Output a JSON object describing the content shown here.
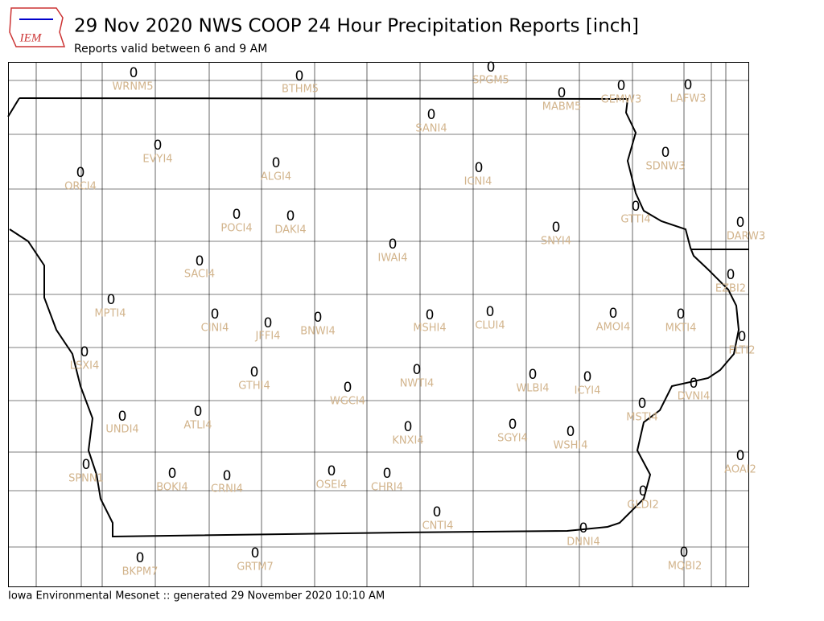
{
  "header": {
    "logo": "IEM",
    "title": "29 Nov 2020 NWS COOP 24 Hour Precipitation Reports [inch]",
    "subtitle": "Reports valid between 6 and 9 AM"
  },
  "stations": [
    {
      "id": "WRNM5",
      "value": 0
    },
    {
      "id": "BTHM5",
      "value": 0
    },
    {
      "id": "SPGM5",
      "value": 0
    },
    {
      "id": "MABM5",
      "value": 0
    },
    {
      "id": "GEMW3",
      "value": 0
    },
    {
      "id": "LAFW3",
      "value": 0
    },
    {
      "id": "SANI4",
      "value": 0
    },
    {
      "id": "EVYI4",
      "value": 0
    },
    {
      "id": "ALGI4",
      "value": 0
    },
    {
      "id": "ORCI4",
      "value": 0
    },
    {
      "id": "ICNI4",
      "value": 0
    },
    {
      "id": "SDNW3",
      "value": 0
    },
    {
      "id": "GTTI4",
      "value": 0
    },
    {
      "id": "DARW3",
      "value": 0
    },
    {
      "id": "POCI4",
      "value": 0
    },
    {
      "id": "DAKI4",
      "value": 0
    },
    {
      "id": "IWAI4",
      "value": 0
    },
    {
      "id": "SNYI4",
      "value": 0
    },
    {
      "id": "SACI4",
      "value": 0
    },
    {
      "id": "EZBI2",
      "value": 0
    },
    {
      "id": "MPTI4",
      "value": 0
    },
    {
      "id": "CINI4",
      "value": 0
    },
    {
      "id": "JFFI4",
      "value": 0
    },
    {
      "id": "BNWI4",
      "value": 0
    },
    {
      "id": "MSHI4",
      "value": 0
    },
    {
      "id": "CLUI4",
      "value": 0
    },
    {
      "id": "AMOI4",
      "value": 0
    },
    {
      "id": "MKTI4",
      "value": 0
    },
    {
      "id": "FLTI2",
      "value": 0
    },
    {
      "id": "LSXI4",
      "value": 0
    },
    {
      "id": "GTHI4",
      "value": 0
    },
    {
      "id": "WGCI4",
      "value": 0
    },
    {
      "id": "NWTI4",
      "value": 0
    },
    {
      "id": "WLBI4",
      "value": 0
    },
    {
      "id": "ICYI4",
      "value": 0
    },
    {
      "id": "DVNI4",
      "value": 0
    },
    {
      "id": "MSTI4",
      "value": 0
    },
    {
      "id": "UNDI4",
      "value": 0
    },
    {
      "id": "ATLI4",
      "value": 0
    },
    {
      "id": "KNXI4",
      "value": 0
    },
    {
      "id": "SGYI4",
      "value": 0
    },
    {
      "id": "WSHI4",
      "value": 0
    },
    {
      "id": "AOAI2",
      "value": 0
    },
    {
      "id": "SPNN1",
      "value": 0
    },
    {
      "id": "BOKI4",
      "value": 0
    },
    {
      "id": "CRNI4",
      "value": 0
    },
    {
      "id": "OSEI4",
      "value": 0
    },
    {
      "id": "CHRI4",
      "value": 0
    },
    {
      "id": "GLDI2",
      "value": 0
    },
    {
      "id": "CNTI4",
      "value": 0
    },
    {
      "id": "DNNI4",
      "value": 0
    },
    {
      "id": "MQBI2",
      "value": 0
    },
    {
      "id": "BKPM7",
      "value": 0
    },
    {
      "id": "GRTM7",
      "value": 0
    }
  ],
  "footer": "Iowa Environmental Mesonet :: generated 29 November 2020 10:10 AM"
}
